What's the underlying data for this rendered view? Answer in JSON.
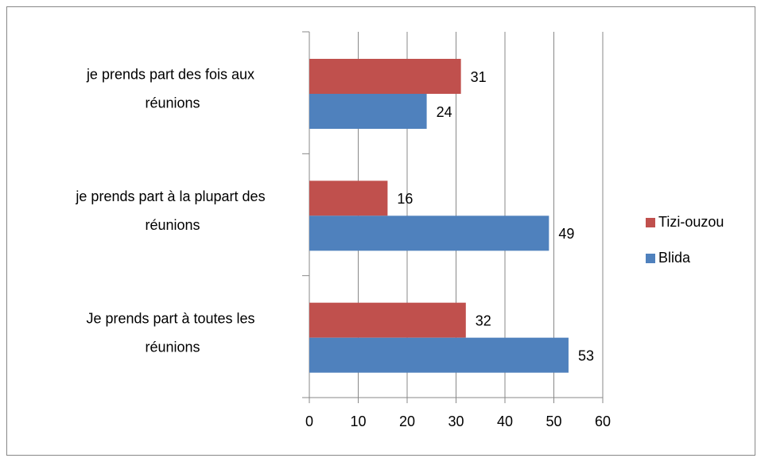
{
  "chart_data": {
    "type": "bar",
    "orientation": "horizontal",
    "categories": [
      "Je prends part à toutes les réunions",
      "je prends part à la plupart des réunions",
      "je prends part des fois aux réunions"
    ],
    "series": [
      {
        "name": "Tizi-ouzou",
        "color": "#c0504d",
        "values": [
          32,
          16,
          31
        ]
      },
      {
        "name": "Blida",
        "color": "#4f81bd",
        "values": [
          53,
          49,
          24
        ]
      }
    ],
    "xlim": [
      0,
      60
    ],
    "xticks": [
      0,
      10,
      20,
      30,
      40,
      50,
      60
    ],
    "grid": true,
    "legend": "right"
  }
}
